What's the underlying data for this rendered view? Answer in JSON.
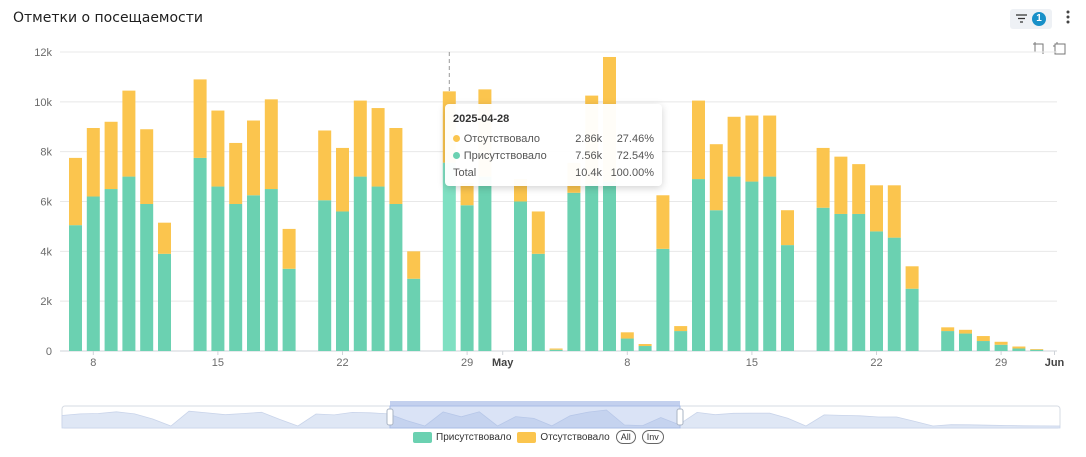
{
  "header": {
    "title": "Отметки о посещаемости",
    "filter_count": "1"
  },
  "icons": {
    "filter": "filter-icon",
    "menu": "more-vertical-icon",
    "toolbox": [
      "zoom-in-icon",
      "zoom-reset-icon"
    ]
  },
  "colors": {
    "present": "#6bd1b1",
    "absent": "#fbc54e",
    "grid": "#e8e8e8",
    "highlight": "#7fe0c2"
  },
  "chart_data": {
    "type": "bar",
    "stacked": true,
    "x_axis_type": "date",
    "date_range": [
      "2025-04-07",
      "2025-06-01"
    ],
    "ylim": [
      0,
      12000
    ],
    "y_ticks": [
      "0",
      "2k",
      "4k",
      "6k",
      "8k",
      "10k",
      "12k"
    ],
    "x_tick_labels": [
      {
        "date": "2025-04-08",
        "label": "8"
      },
      {
        "date": "2025-04-15",
        "label": "15"
      },
      {
        "date": "2025-04-22",
        "label": "22"
      },
      {
        "date": "2025-04-29",
        "label": "29"
      },
      {
        "date": "2025-05-01",
        "label": "May"
      },
      {
        "date": "2025-05-08",
        "label": "8"
      },
      {
        "date": "2025-05-15",
        "label": "15"
      },
      {
        "date": "2025-05-22",
        "label": "22"
      },
      {
        "date": "2025-05-29",
        "label": "29"
      },
      {
        "date": "2025-06-01",
        "label": "Jun"
      }
    ],
    "grid": true,
    "legend_position": "bottom",
    "categories": [
      "2025-04-07",
      "2025-04-08",
      "2025-04-09",
      "2025-04-10",
      "2025-04-11",
      "2025-04-12",
      "2025-04-13",
      "2025-04-14",
      "2025-04-15",
      "2025-04-16",
      "2025-04-17",
      "2025-04-18",
      "2025-04-19",
      "2025-04-20",
      "2025-04-21",
      "2025-04-22",
      "2025-04-23",
      "2025-04-24",
      "2025-04-25",
      "2025-04-26",
      "2025-04-27",
      "2025-04-28",
      "2025-04-29",
      "2025-04-30",
      "2025-05-01",
      "2025-05-02",
      "2025-05-03",
      "2025-05-04",
      "2025-05-05",
      "2025-05-06",
      "2025-05-07",
      "2025-05-08",
      "2025-05-09",
      "2025-05-10",
      "2025-05-11",
      "2025-05-12",
      "2025-05-13",
      "2025-05-14",
      "2025-05-15",
      "2025-05-16",
      "2025-05-17",
      "2025-05-18",
      "2025-05-19",
      "2025-05-20",
      "2025-05-21",
      "2025-05-22",
      "2025-05-23",
      "2025-05-24",
      "2025-05-25",
      "2025-05-26",
      "2025-05-27",
      "2025-05-28",
      "2025-05-29",
      "2025-05-30",
      "2025-05-31",
      "2025-06-01"
    ],
    "series": [
      {
        "name": "Присутствовало",
        "values": [
          5050,
          6200,
          6500,
          7000,
          5900,
          3900,
          0,
          7750,
          6600,
          5900,
          6250,
          6500,
          3300,
          0,
          6050,
          5600,
          7000,
          6600,
          5900,
          2900,
          0,
          7560,
          5850,
          7000,
          0,
          6000,
          3900,
          50,
          6350,
          6700,
          6800,
          500,
          200,
          4100,
          800,
          6900,
          5650,
          7000,
          6800,
          7000,
          4250,
          0,
          5750,
          5500,
          5500,
          4800,
          4550,
          2500,
          0,
          800,
          700,
          400,
          250,
          100,
          50,
          0
        ]
      },
      {
        "name": "Отсутствовало",
        "values": [
          2700,
          2750,
          2700,
          3450,
          3000,
          1250,
          0,
          3150,
          3050,
          2450,
          3000,
          3600,
          1600,
          0,
          2800,
          2550,
          3050,
          3150,
          3050,
          1100,
          0,
          2860,
          900,
          3500,
          0,
          900,
          1700,
          50,
          1200,
          3550,
          5000,
          250,
          80,
          2150,
          200,
          3150,
          2650,
          2400,
          2650,
          2450,
          1400,
          0,
          2400,
          2300,
          2000,
          1850,
          2100,
          900,
          0,
          150,
          150,
          200,
          120,
          80,
          30,
          0
        ]
      }
    ],
    "highlighted": "2025-04-28",
    "tooltip": {
      "date": "2025-04-28",
      "rows": [
        {
          "name": "Отсутствовало",
          "value": "2.86k",
          "pct": "27.46%"
        },
        {
          "name": "Присутствовало",
          "value": "7.56k",
          "pct": "72.54%"
        },
        {
          "name": "Total",
          "value": "10.4k",
          "pct": "100.00%"
        }
      ]
    }
  },
  "legend": {
    "items": [
      {
        "name": "Присутствовало",
        "color": "#6bd1b1"
      },
      {
        "name": "Отсутствовало",
        "color": "#fbc54e"
      }
    ],
    "all_label": "All",
    "inv_label": "Inv"
  }
}
